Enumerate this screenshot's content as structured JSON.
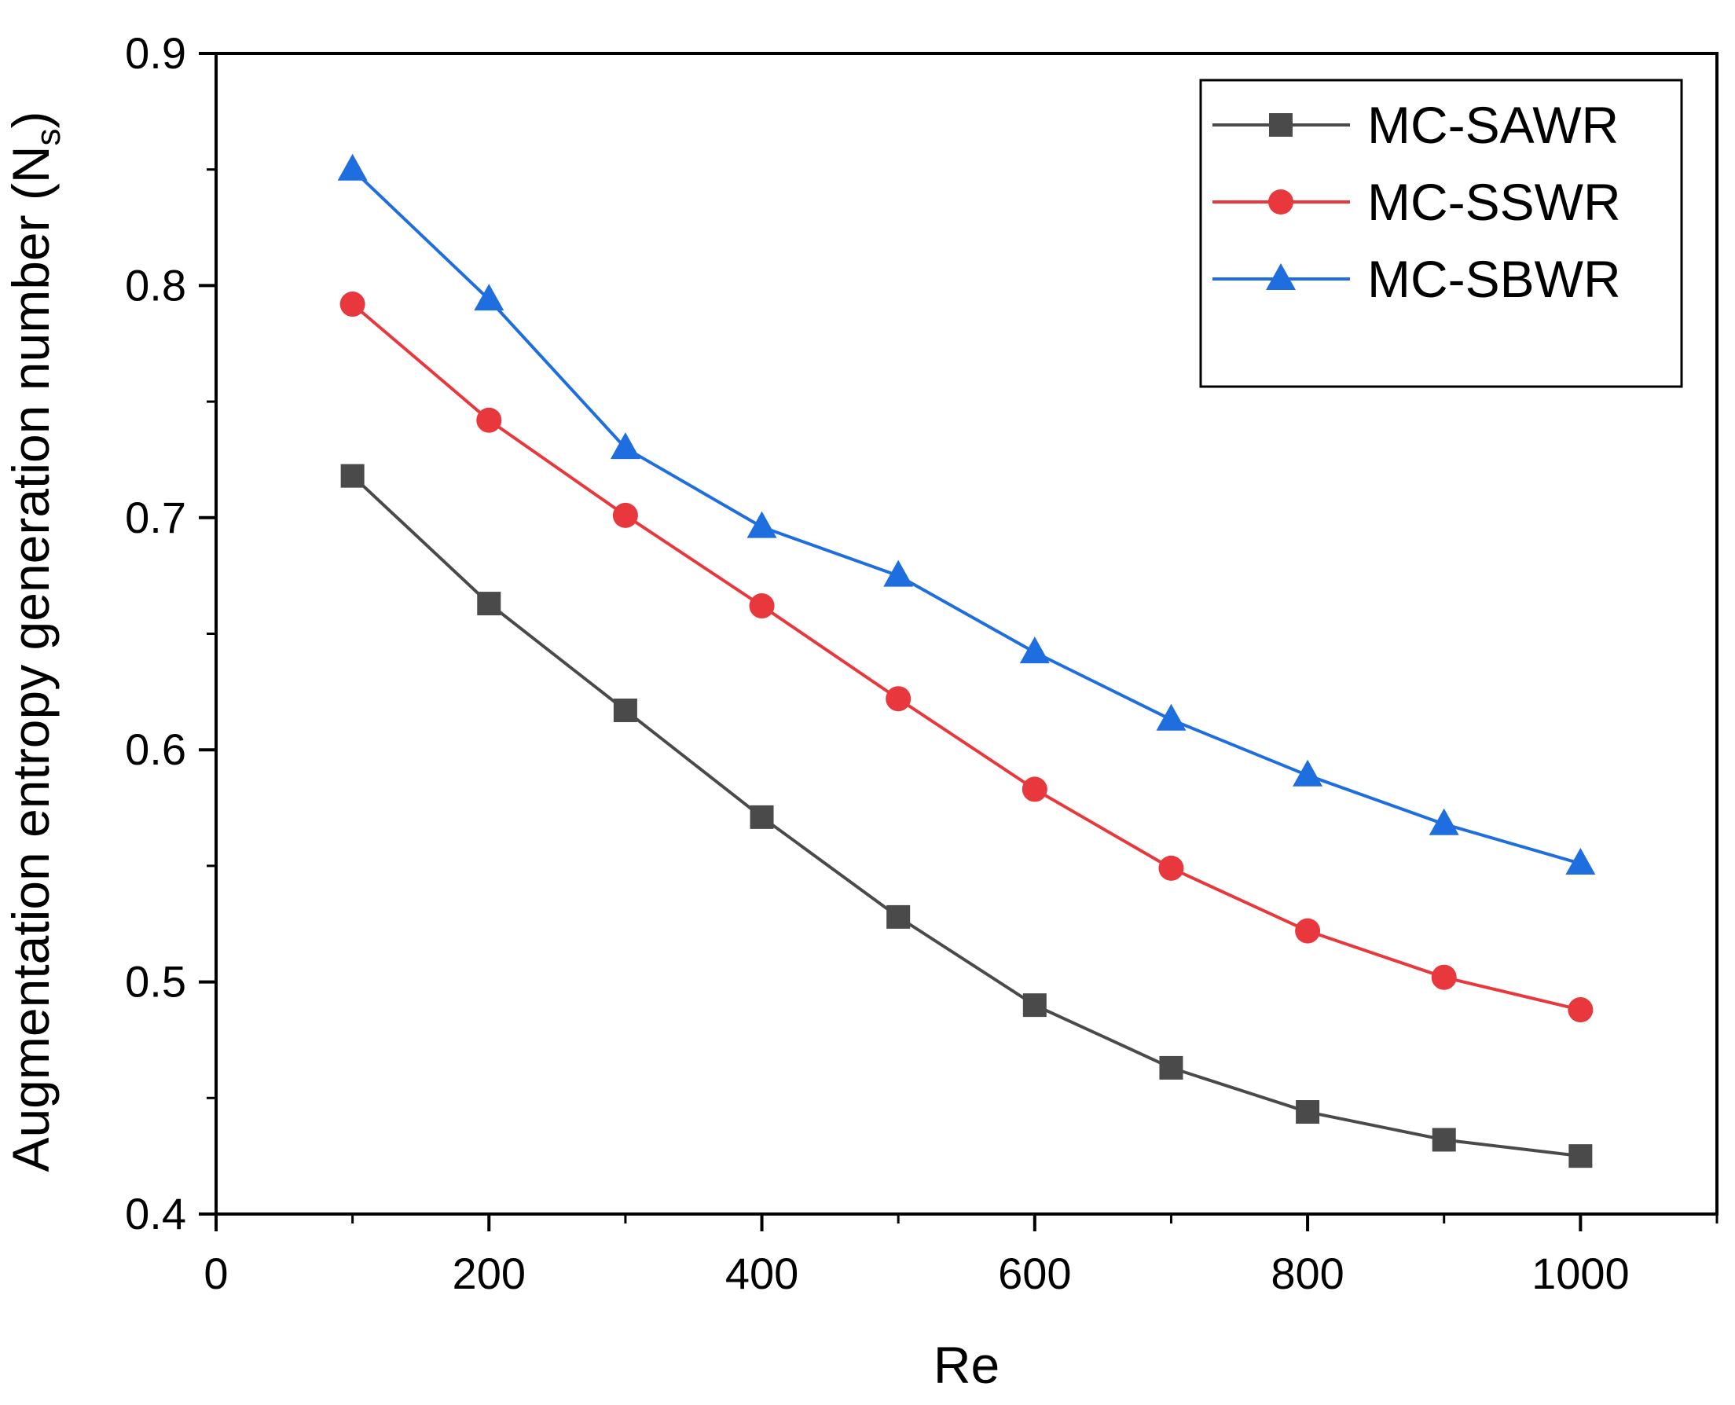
{
  "chart_data": {
    "type": "line",
    "title": "",
    "xlabel": "Re",
    "ylabel": "Augmentation entropy generation number (N",
    "ylabel_subscript": "s",
    "ylabel_close": ")",
    "xlim": [
      0,
      1100
    ],
    "ylim": [
      0.4,
      0.9
    ],
    "xticks": [
      0,
      200,
      400,
      600,
      800,
      1000
    ],
    "xtick_labels": [
      "0",
      "200",
      "400",
      "600",
      "800",
      "1000"
    ],
    "yticks": [
      0.4,
      0.5,
      0.6,
      0.7,
      0.8,
      0.9
    ],
    "ytick_labels": [
      "0.4",
      "0.5",
      "0.6",
      "0.7",
      "0.8",
      "0.9"
    ],
    "grid": false,
    "legend_position": "top-right",
    "x": [
      100,
      200,
      300,
      400,
      500,
      600,
      700,
      800,
      900,
      1000
    ],
    "series": [
      {
        "name": "MC-SAWR",
        "color": "#4a4a4a",
        "marker": "square",
        "values": [
          0.718,
          0.663,
          0.617,
          0.571,
          0.528,
          0.49,
          0.463,
          0.444,
          0.432,
          0.425
        ]
      },
      {
        "name": "MC-SSWR",
        "color": "#e8383d",
        "marker": "circle",
        "values": [
          0.792,
          0.742,
          0.701,
          0.662,
          0.622,
          0.583,
          0.549,
          0.522,
          0.502,
          0.488
        ]
      },
      {
        "name": "MC-SBWR",
        "color": "#1f6ee0",
        "marker": "triangle",
        "values": [
          0.85,
          0.794,
          0.73,
          0.696,
          0.675,
          0.642,
          0.613,
          0.589,
          0.568,
          0.551
        ]
      }
    ]
  }
}
